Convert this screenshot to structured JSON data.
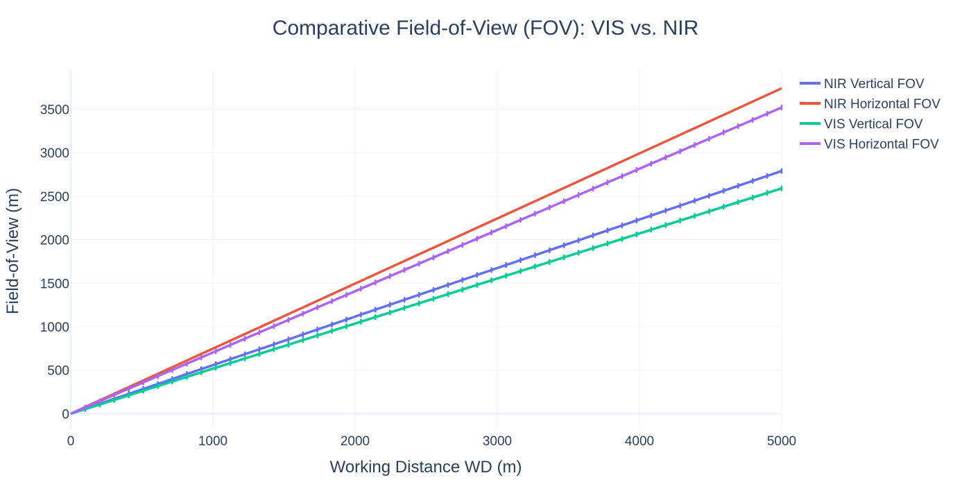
{
  "chart_data": {
    "type": "line",
    "title": "Comparative Field-of-View (FOV): VIS vs. NIR",
    "xlabel": "Working Distance WD (m)",
    "ylabel": "Field-of-View (m)",
    "xlim": [
      0,
      5000
    ],
    "ylim": [
      -180,
      3950
    ],
    "x_ticks": [
      0,
      1000,
      2000,
      3000,
      4000,
      5000
    ],
    "y_ticks": [
      0,
      500,
      1000,
      1500,
      2000,
      2500,
      3000,
      3500
    ],
    "grid": true,
    "legend_position": "top-right",
    "x": [
      0,
      5000
    ],
    "series": [
      {
        "name": "NIR Vertical FOV",
        "color": "#636efa",
        "values": [
          0,
          2790
        ],
        "marker": "tick"
      },
      {
        "name": "NIR Horizontal FOV",
        "color": "#ef553b",
        "values": [
          0,
          3740
        ],
        "marker": "none"
      },
      {
        "name": "VIS Vertical FOV",
        "color": "#00cc96",
        "values": [
          0,
          2590
        ],
        "marker": "tick"
      },
      {
        "name": "VIS Horizontal FOV",
        "color": "#ab63fa",
        "values": [
          0,
          3520
        ],
        "marker": "tick"
      }
    ]
  }
}
